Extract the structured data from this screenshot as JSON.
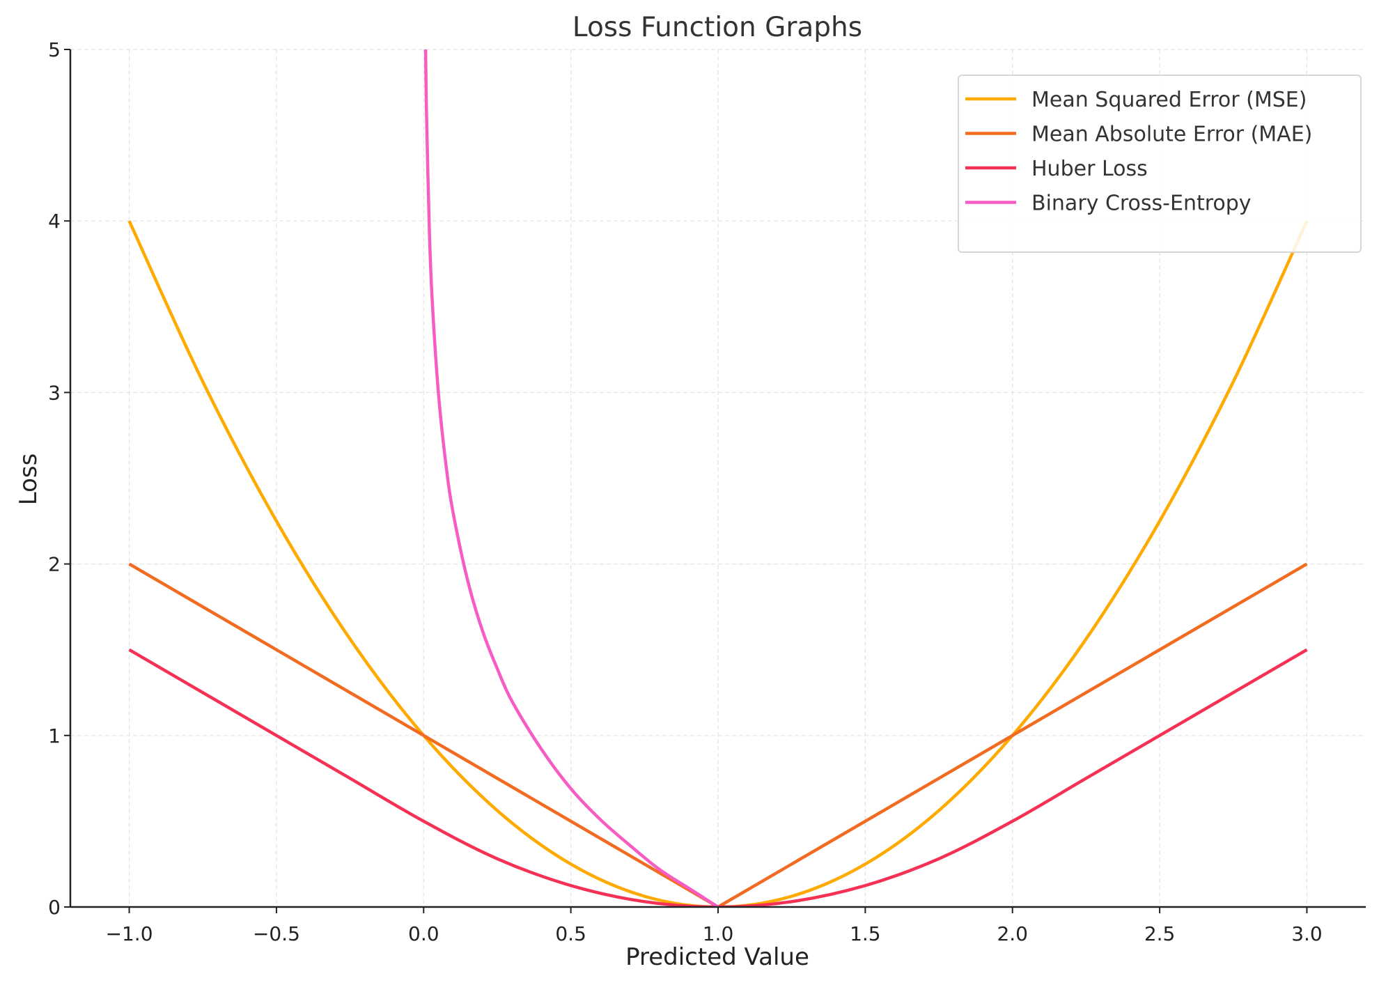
{
  "chart_data": {
    "type": "line",
    "title": "Loss Function Graphs",
    "xlabel": "Predicted Value",
    "ylabel": "Loss",
    "xlim": [
      -1.2,
      3.2
    ],
    "ylim": [
      0,
      5
    ],
    "xticks": [
      -1.0,
      -0.5,
      0.0,
      0.5,
      1.0,
      1.5,
      2.0,
      2.5,
      3.0
    ],
    "xtick_labels": [
      "−1.0",
      "−0.5",
      "0.0",
      "0.5",
      "1.0",
      "1.5",
      "2.0",
      "2.5",
      "3.0"
    ],
    "yticks": [
      0,
      1,
      2,
      3,
      4,
      5
    ],
    "ytick_labels": [
      "0",
      "1",
      "2",
      "3",
      "4",
      "5"
    ],
    "grid": true,
    "legend_position": "top-right",
    "series": [
      {
        "name": "Mean Squared Error (MSE)",
        "color": "#FFAA00",
        "smooth": true,
        "x": [
          -1,
          -0.75,
          -0.5,
          -0.25,
          0,
          0.25,
          0.5,
          0.75,
          1,
          1.25,
          1.5,
          1.75,
          2,
          2.25,
          2.5,
          2.75,
          3
        ],
        "y": [
          4,
          3.0625,
          2.25,
          1.5625,
          1,
          0.5625,
          0.25,
          0.0625,
          0,
          0.0625,
          0.25,
          0.5625,
          1,
          1.5625,
          2.25,
          3.0625,
          4
        ]
      },
      {
        "name": "Mean Absolute Error (MAE)",
        "color": "#F26B21",
        "smooth": false,
        "x": [
          -1,
          1,
          3
        ],
        "y": [
          2,
          0,
          2
        ]
      },
      {
        "name": "Huber Loss",
        "color": "#F53255",
        "smooth": true,
        "x": [
          -1,
          -0.75,
          -0.5,
          -0.25,
          0,
          0.25,
          0.5,
          0.75,
          1,
          1.25,
          1.5,
          1.75,
          2,
          2.25,
          2.5,
          2.75,
          3
        ],
        "y": [
          1.5,
          1.25,
          1,
          0.75,
          0.5,
          0.28125,
          0.125,
          0.03125,
          0,
          0.03125,
          0.125,
          0.28125,
          0.5,
          0.75,
          1,
          1.25,
          1.5
        ]
      },
      {
        "name": "Binary Cross-Entropy",
        "color": "#F75BC4",
        "smooth": true,
        "x": [
          0.005,
          0.007,
          0.01,
          0.02,
          0.03,
          0.05,
          0.075,
          0.1,
          0.15,
          0.2,
          0.25,
          0.3,
          0.4,
          0.5,
          0.6,
          0.7,
          0.8,
          0.9,
          1.0
        ],
        "y": [
          5.3,
          4.96,
          4.61,
          3.91,
          3.51,
          3.0,
          2.59,
          2.3,
          1.9,
          1.61,
          1.39,
          1.2,
          0.92,
          0.69,
          0.51,
          0.36,
          0.22,
          0.11,
          0
        ]
      }
    ]
  }
}
